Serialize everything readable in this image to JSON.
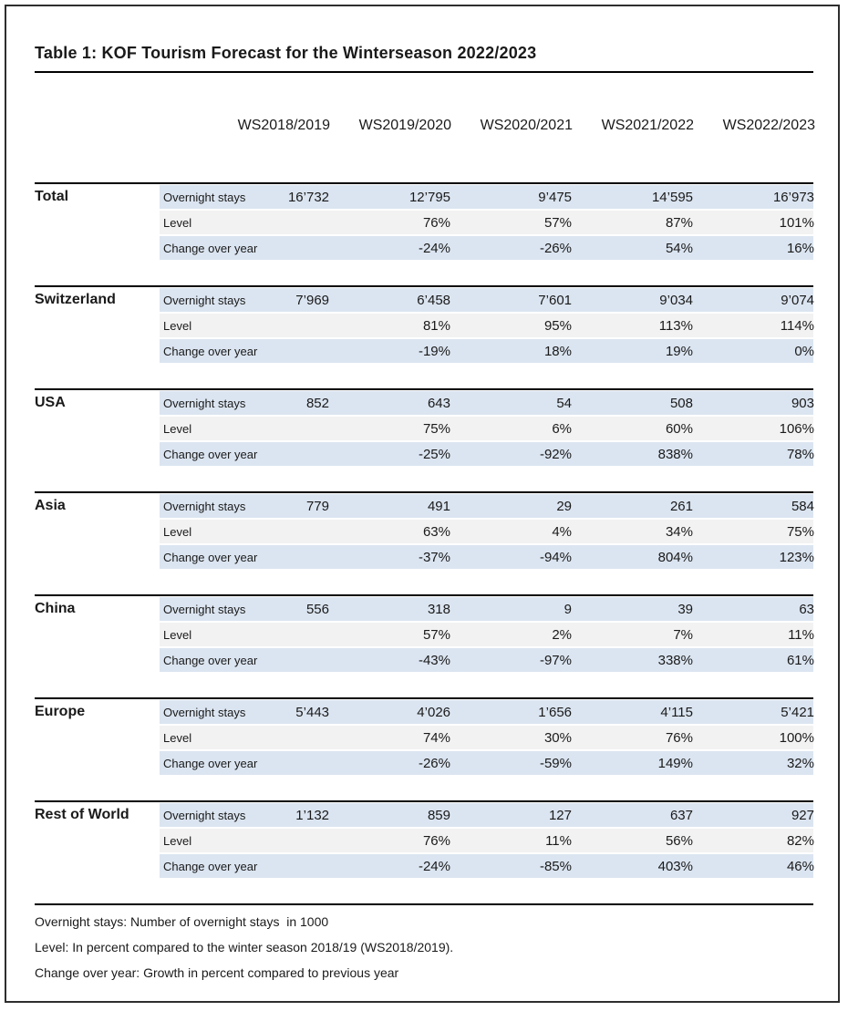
{
  "title": "Table 1: KOF Tourism Forecast for the Winterseason 2022/2023",
  "columns": [
    "WS2018/2019",
    "WS2019/2020",
    "WS2020/2021",
    "WS2021/2022",
    "WS2022/2023"
  ],
  "row_labels": {
    "overnight": "Overnight stays",
    "level": "Level",
    "change": "Change over year"
  },
  "sections": [
    {
      "name": "Total",
      "overnight": [
        "16’732",
        "12’795",
        "9’475",
        "14’595",
        "16’973"
      ],
      "level": [
        "",
        "76%",
        "57%",
        "87%",
        "101%"
      ],
      "change": [
        "",
        "-24%",
        "-26%",
        "54%",
        "16%"
      ]
    },
    {
      "name": "Switzerland",
      "overnight": [
        "7’969",
        "6’458",
        "7’601",
        "9’034",
        "9’074"
      ],
      "level": [
        "",
        "81%",
        "95%",
        "113%",
        "114%"
      ],
      "change": [
        "",
        "-19%",
        "18%",
        "19%",
        "0%"
      ]
    },
    {
      "name": "USA",
      "overnight": [
        "852",
        "643",
        "54",
        "508",
        "903"
      ],
      "level": [
        "",
        "75%",
        "6%",
        "60%",
        "106%"
      ],
      "change": [
        "",
        "-25%",
        "-92%",
        "838%",
        "78%"
      ]
    },
    {
      "name": "Asia",
      "overnight": [
        "779",
        "491",
        "29",
        "261",
        "584"
      ],
      "level": [
        "",
        "63%",
        "4%",
        "34%",
        "75%"
      ],
      "change": [
        "",
        "-37%",
        "-94%",
        "804%",
        "123%"
      ]
    },
    {
      "name": "China",
      "overnight": [
        "556",
        "318",
        "9",
        "39",
        "63"
      ],
      "level": [
        "",
        "57%",
        "2%",
        "7%",
        "11%"
      ],
      "change": [
        "",
        "-43%",
        "-97%",
        "338%",
        "61%"
      ]
    },
    {
      "name": "Europe",
      "overnight": [
        "5’443",
        "4’026",
        "1’656",
        "4’115",
        "5’421"
      ],
      "level": [
        "",
        "74%",
        "30%",
        "76%",
        "100%"
      ],
      "change": [
        "",
        "-26%",
        "-59%",
        "149%",
        "32%"
      ]
    },
    {
      "name": "Rest of World",
      "overnight": [
        "1’132",
        "859",
        "127",
        "637",
        "927"
      ],
      "level": [
        "",
        "76%",
        "11%",
        "56%",
        "82%"
      ],
      "change": [
        "",
        "-24%",
        "-85%",
        "403%",
        "46%"
      ]
    }
  ],
  "footnotes": [
    "Overnight stays: Number of overnight stays  in 1000",
    "Level: In percent compared to the winter season 2018/19 (WS2018/2019).",
    "Change over year: Growth in percent compared to previous year"
  ],
  "colors": {
    "row_blue": "#dbe5f1",
    "row_gray": "#f2f2f2",
    "rule": "#000000",
    "frame": "#2e2e2e"
  }
}
